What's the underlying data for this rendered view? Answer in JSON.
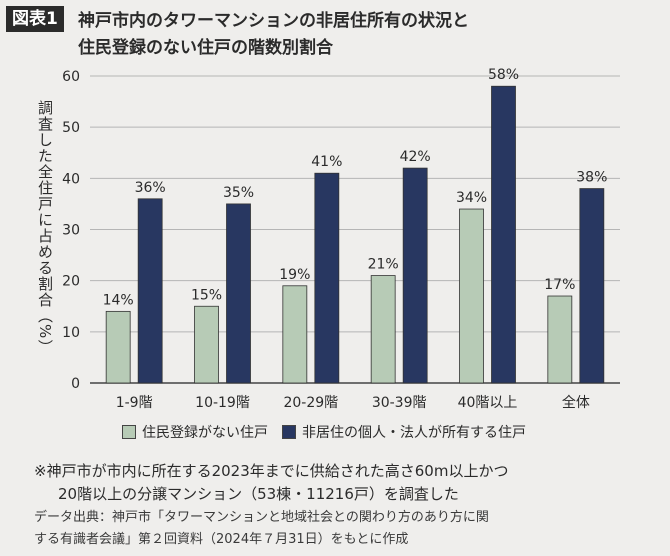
{
  "header": {
    "fig_label": "図表1",
    "title_lines": [
      "神戸市内のタワーマンションの非居住所有の状況と",
      "住民登録のない住戸の階数別割合"
    ]
  },
  "chart_data": {
    "type": "bar",
    "categories": [
      "1-9階",
      "10-19階",
      "20-29階",
      "30-39階",
      "40階以上",
      "全体"
    ],
    "series": [
      {
        "name": "住民登録がない住戸",
        "values": [
          14,
          15,
          19,
          21,
          34,
          17
        ],
        "color": "#b7cbb6"
      },
      {
        "name": "非居住の個人・法人が所有する住戸",
        "values": [
          36,
          35,
          41,
          42,
          58,
          38
        ],
        "color": "#283761"
      }
    ],
    "ylabel": "調査した全住戸に占める割合（%）",
    "ylim": [
      0,
      60
    ],
    "yticks": [
      0,
      10,
      20,
      30,
      40,
      50,
      60
    ],
    "value_suffix": "%",
    "grid": true,
    "legend_position": "bottom"
  },
  "notes": {
    "line1": "※神戸市が市内に所在する2023年までに供給された高さ60m以上かつ",
    "line2": "20階以上の分譲マンション（53棟・11216戸）を調査した",
    "source1": "データ出典：神戸市「タワーマンションと地域社会との関わり方のあり方に関",
    "source2": "する有識者会議」第２回資料（2024年７月31日）をもとに作成"
  }
}
